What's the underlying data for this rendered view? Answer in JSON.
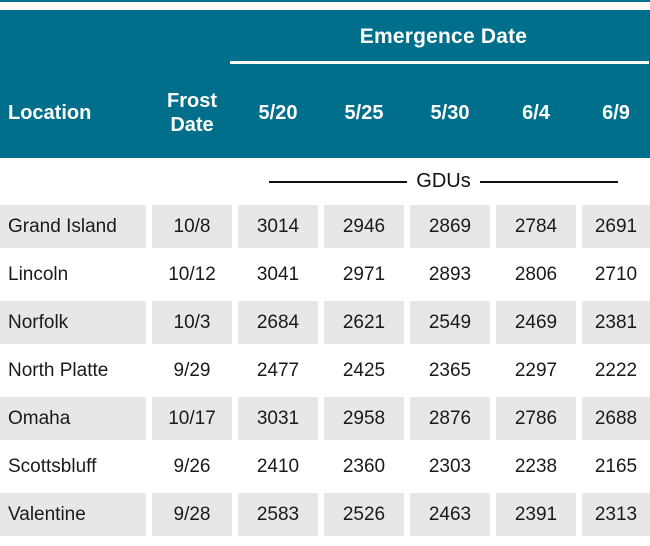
{
  "chart_data": {
    "type": "table",
    "group_header": "Emergence Date",
    "units_label": "GDUs",
    "columns": [
      "Location",
      "Frost Date",
      "5/20",
      "5/25",
      "5/30",
      "6/4",
      "6/9"
    ],
    "rows": [
      [
        "Grand Island",
        "10/8",
        "3014",
        "2946",
        "2869",
        "2784",
        "2691"
      ],
      [
        "Lincoln",
        "10/12",
        "3041",
        "2971",
        "2893",
        "2806",
        "2710"
      ],
      [
        "Norfolk",
        "10/3",
        "2684",
        "2621",
        "2549",
        "2469",
        "2381"
      ],
      [
        "North Platte",
        "9/29",
        "2477",
        "2425",
        "2365",
        "2297",
        "2222"
      ],
      [
        "Omaha",
        "10/17",
        "3031",
        "2958",
        "2876",
        "2786",
        "2688"
      ],
      [
        "Scottsbluff",
        "9/26",
        "2410",
        "2360",
        "2303",
        "2238",
        "2165"
      ],
      [
        "Valentine",
        "9/28",
        "2583",
        "2526",
        "2463",
        "2391",
        "2313"
      ]
    ]
  },
  "header": {
    "emergence_date_label": "Emergence Date",
    "location_label": "Location",
    "frost_date_line1": "Frost",
    "frost_date_line2": "Date",
    "date_columns": [
      "5/20",
      "5/25",
      "5/30",
      "6/4",
      "6/9"
    ]
  },
  "units": {
    "gdus_label": "GDUs"
  },
  "rows": [
    {
      "location": "Grand Island",
      "frost_date": "10/8",
      "gdus": [
        "3014",
        "2946",
        "2869",
        "2784",
        "2691"
      ]
    },
    {
      "location": "Lincoln",
      "frost_date": "10/12",
      "gdus": [
        "3041",
        "2971",
        "2893",
        "2806",
        "2710"
      ]
    },
    {
      "location": "Norfolk",
      "frost_date": "10/3",
      "gdus": [
        "2684",
        "2621",
        "2549",
        "2469",
        "2381"
      ]
    },
    {
      "location": "North Platte",
      "frost_date": "9/29",
      "gdus": [
        "2477",
        "2425",
        "2365",
        "2297",
        "2222"
      ]
    },
    {
      "location": "Omaha",
      "frost_date": "10/17",
      "gdus": [
        "3031",
        "2958",
        "2876",
        "2786",
        "2688"
      ]
    },
    {
      "location": "Scottsbluff",
      "frost_date": "9/26",
      "gdus": [
        "2410",
        "2360",
        "2303",
        "2238",
        "2165"
      ]
    },
    {
      "location": "Valentine",
      "frost_date": "9/28",
      "gdus": [
        "2583",
        "2526",
        "2463",
        "2391",
        "2313"
      ]
    }
  ],
  "colors": {
    "header_teal": "#006F8C",
    "row_gray": "#E7E7E7",
    "underline_white": "#FFFFFF",
    "text_dark": "#1A1A1A"
  }
}
